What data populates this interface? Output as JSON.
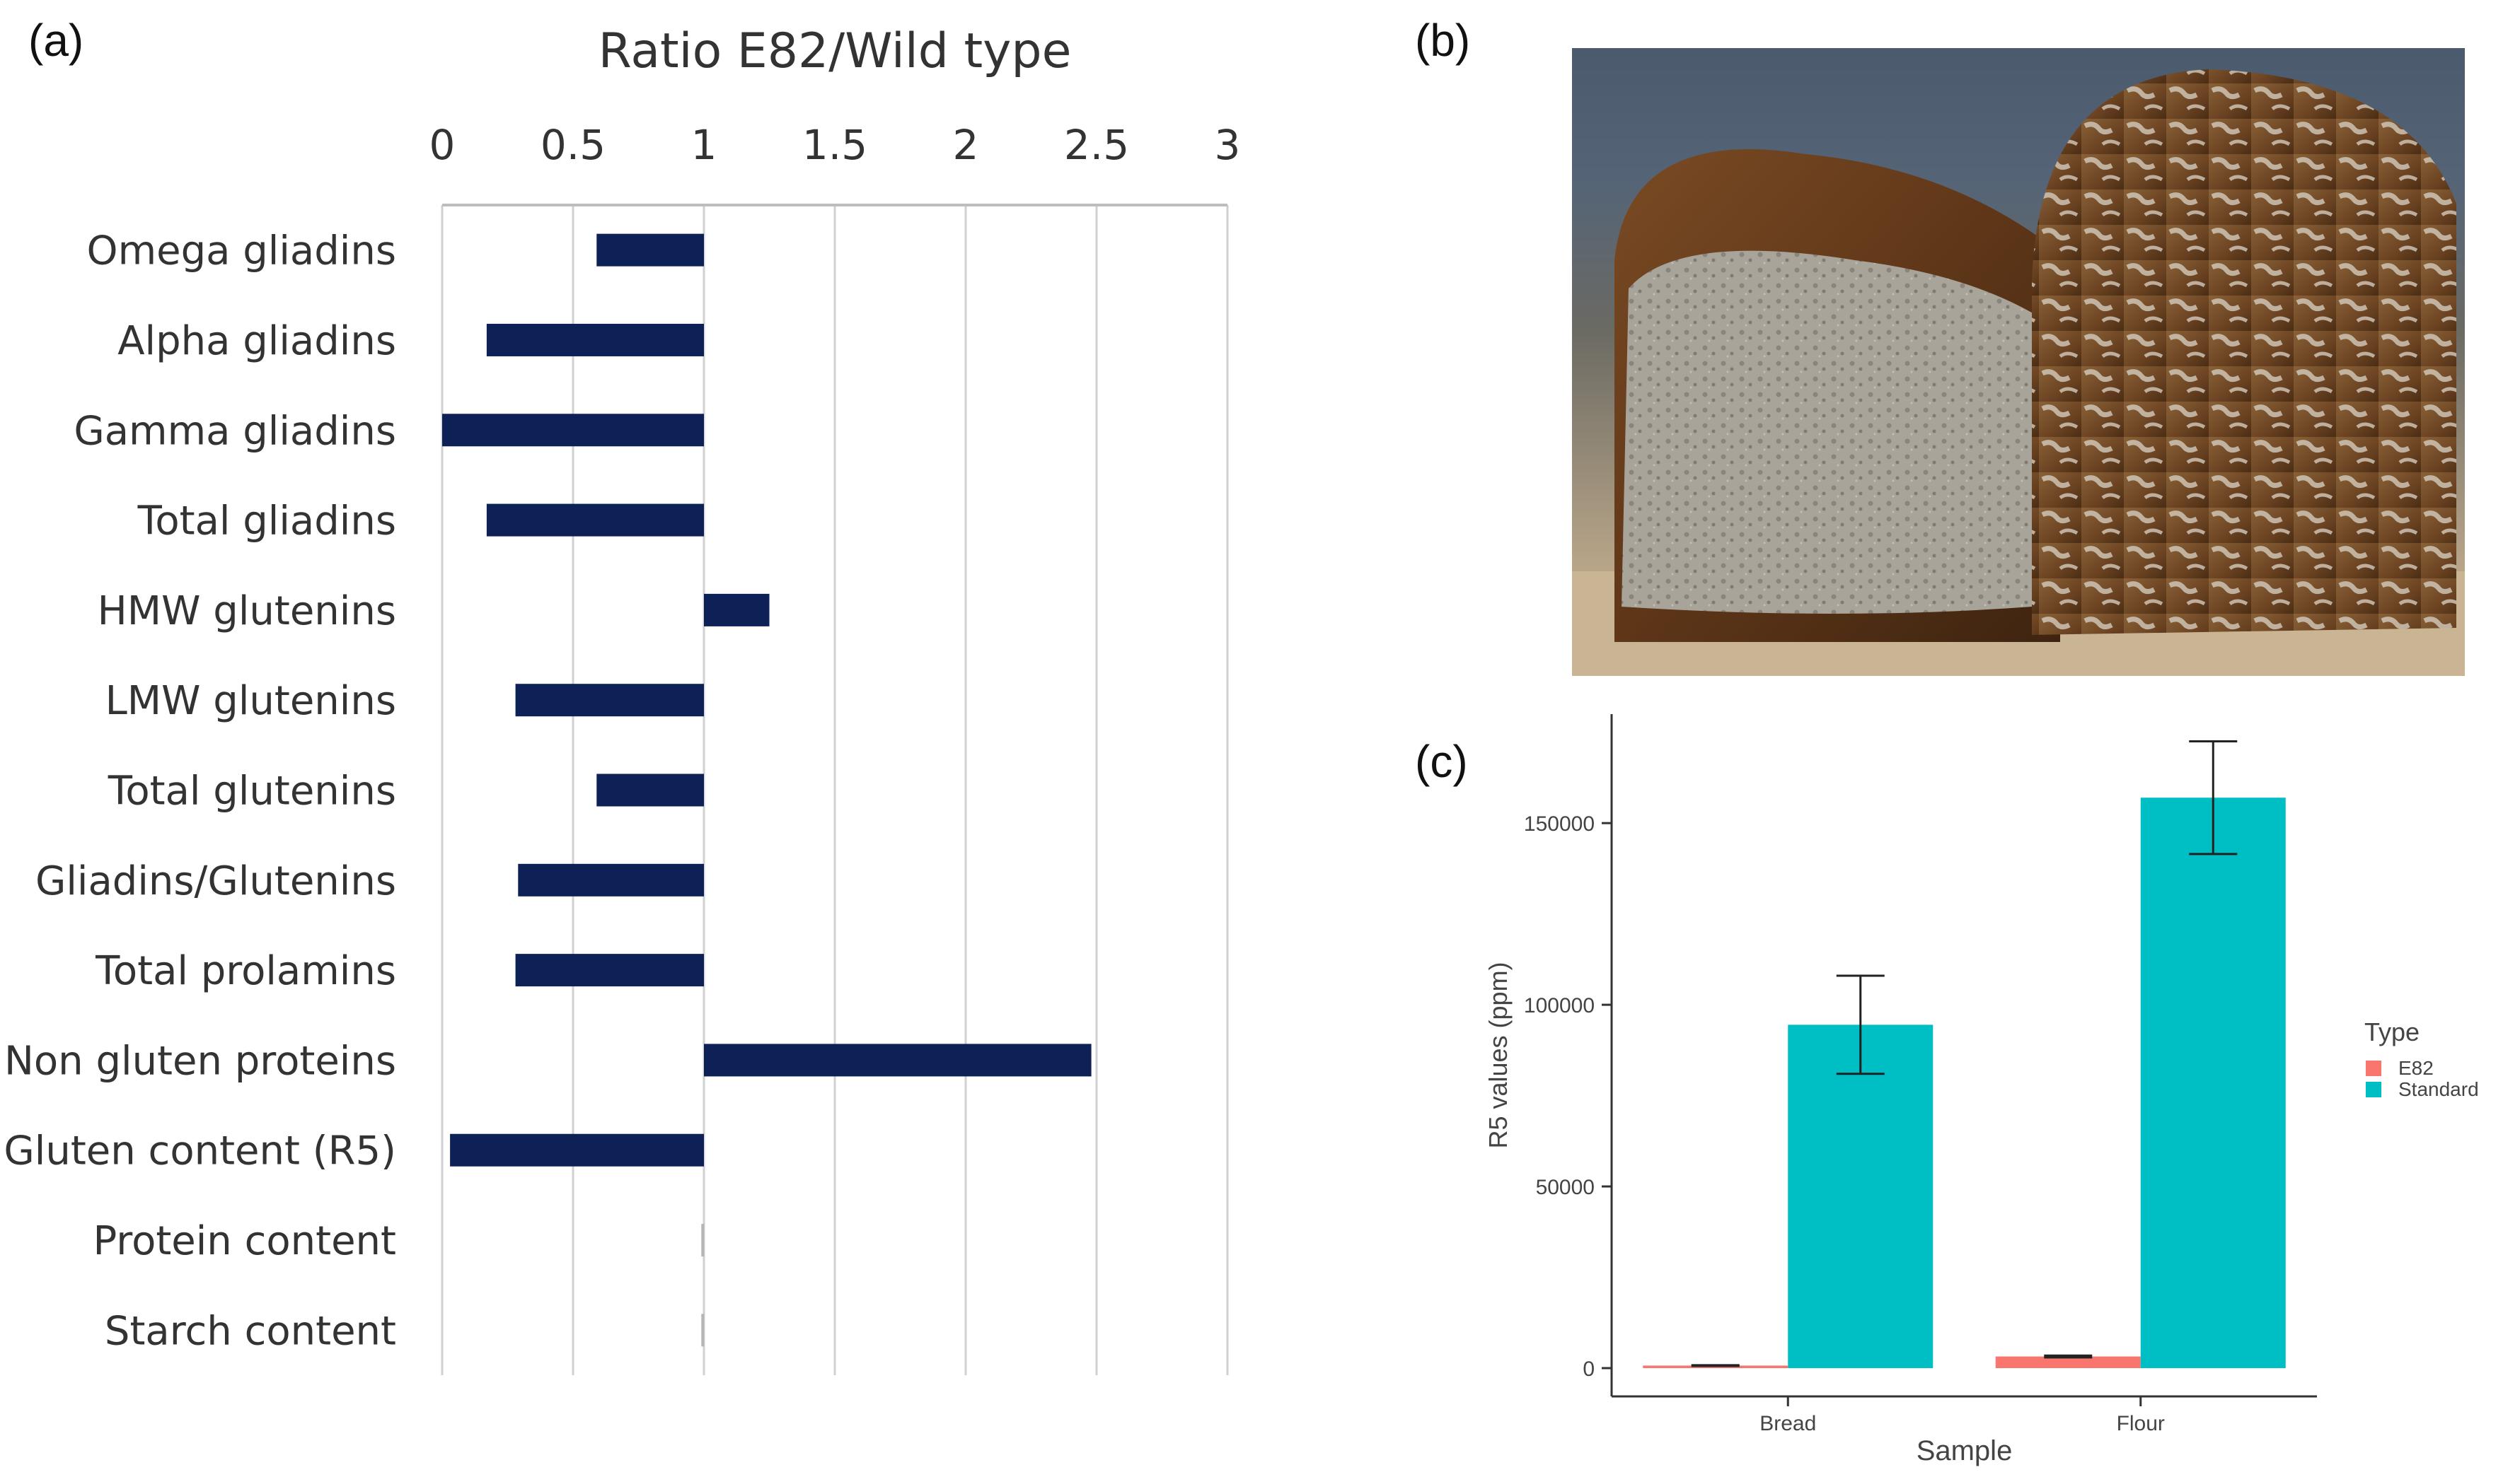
{
  "panel_labels": {
    "a": "(a)",
    "b": "(b)",
    "c": "(c)"
  },
  "chart_data": [
    {
      "id": "a",
      "type": "bar",
      "orientation": "horizontal",
      "title": "Ratio E82/Wild type",
      "xlim": [
        0,
        3
      ],
      "ticks": [
        "0",
        "0.5",
        "1",
        "1.5",
        "2",
        "2.5",
        "3"
      ],
      "tick_values": [
        0,
        0.5,
        1,
        1.5,
        2,
        2.5,
        3
      ],
      "baseline": 1,
      "categories": [
        "Omega gliadins",
        "Alpha gliadins",
        "Gamma gliadins",
        "Total gliadins",
        "HMW glutenins",
        "LMW glutenins",
        "Total glutenins",
        "Gliadins/Glutenins",
        "Total prolamins",
        "Non gluten proteins",
        "Gluten content (R5)",
        "Protein content",
        "Starch content"
      ],
      "values": [
        0.59,
        0.17,
        0.0,
        0.17,
        1.25,
        0.28,
        0.59,
        0.29,
        0.28,
        2.48,
        0.03,
        0.99,
        0.99
      ],
      "bar_color": "#0e2157",
      "grid": true
    },
    {
      "id": "c",
      "type": "bar",
      "title": "",
      "xlabel": "Sample",
      "ylabel": "R5 values (ppm)",
      "categories": [
        "Bread",
        "Flour"
      ],
      "ylim": [
        0,
        180000
      ],
      "yticks": [
        "0",
        "50000",
        "100000",
        "150000"
      ],
      "ytick_values": [
        0,
        50000,
        100000,
        150000
      ],
      "series": [
        {
          "name": "E82",
          "color": "#f8766d",
          "values": [
            700,
            3200
          ],
          "error": [
            100,
            250
          ]
        },
        {
          "name": "Standard",
          "color": "#00bfc4",
          "values": [
            94500,
            157000
          ],
          "error": [
            13500,
            15500
          ]
        }
      ],
      "legend": {
        "title": "Type",
        "placement": "right"
      },
      "grid": false
    }
  ]
}
